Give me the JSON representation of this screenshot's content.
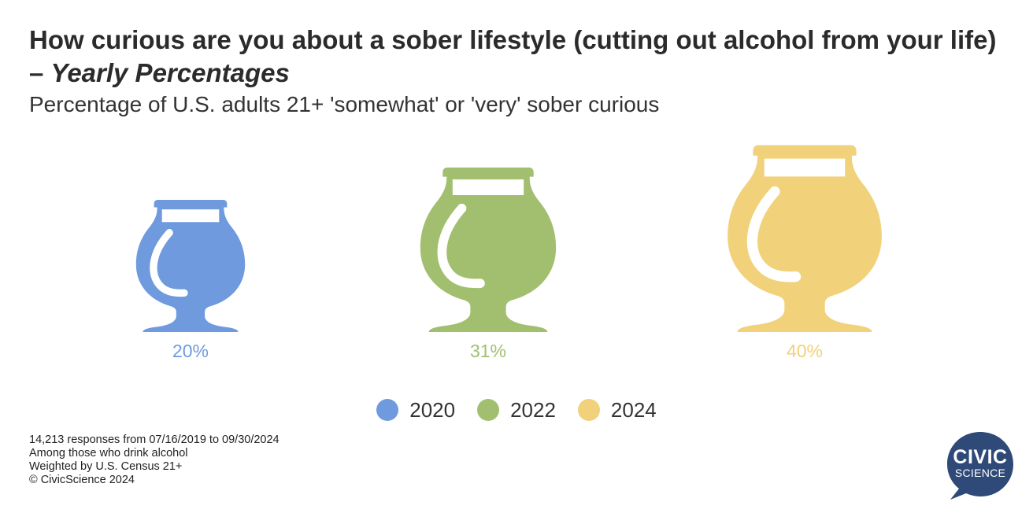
{
  "header": {
    "title_main": "How curious are you about a sober lifestyle (cutting out alcohol from your life) – ",
    "title_italic": "Yearly Percentages",
    "subtitle": "Percentage of U.S. adults 21+ 'somewhat' or 'very' sober curious"
  },
  "chart_data": {
    "type": "bar",
    "title": "How curious are you about a sober lifestyle (cutting out alcohol from your life) – Yearly Percentages",
    "subtitle": "Percentage of U.S. adults 21+ 'somewhat' or 'very' sober curious",
    "categories": [
      "2020",
      "2022",
      "2024"
    ],
    "values": [
      20,
      31,
      40
    ],
    "value_labels": [
      "20%",
      "31%",
      "40%"
    ],
    "colors": [
      "#6f9ade",
      "#a1bf6f",
      "#f1d17a"
    ],
    "mark_style": "glass-icon",
    "legend_position": "bottom-center",
    "grid": false
  },
  "legend": {
    "items": [
      {
        "label": "2020",
        "color": "#6f9ade"
      },
      {
        "label": "2022",
        "color": "#a1bf6f"
      },
      {
        "label": "2024",
        "color": "#f1d17a"
      }
    ]
  },
  "footnotes": {
    "line1": "14,213 responses from 07/16/2019 to 09/30/2024",
    "line2": "Among those who drink alcohol",
    "line3": "Weighted by U.S. Census 21+",
    "line4": "© CivicScience 2024"
  },
  "logo": {
    "line1": "CIVIC",
    "line2": "SCIENCE",
    "color": "#2f4a78"
  }
}
